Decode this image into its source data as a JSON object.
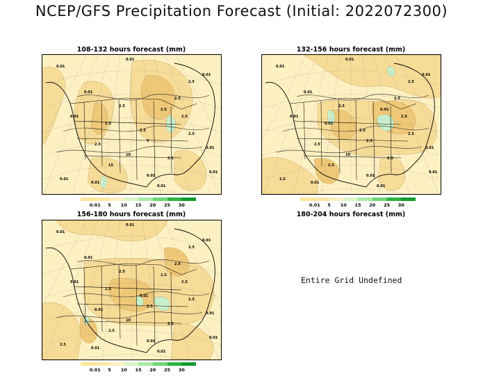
{
  "title": "NCEP/GFS Precipitation Forecast (Initial: 2022072300)",
  "panels": [
    {
      "title": "108-132 hours forecast (mm)",
      "labels": [
        "0.01",
        "0.01",
        "0.01",
        "0.01",
        "2.5",
        "2.5",
        "2.5",
        "2.5",
        "2.5",
        "2.5",
        "5",
        "10",
        "15",
        "2.5",
        "2.5",
        "0.01",
        "0.01",
        "0.01",
        "0.01",
        "2.5",
        "2.5",
        "0.01",
        "0.01",
        "0.01"
      ]
    },
    {
      "title": "132-156 hours forecast (mm)",
      "labels": [
        "0.01",
        "0.01",
        "0.01",
        "0.01",
        "2.5",
        "2.5",
        "0.01",
        "0.01",
        "2.5",
        "2.5",
        "2.5",
        "10",
        "2.5",
        "2.5",
        "2.5",
        "2.5",
        "0.01",
        "0.01",
        "0.01",
        "2.5",
        "2.5",
        "0.01",
        "0.01",
        "0.01"
      ]
    },
    {
      "title": "156-180 hours forecast (mm)",
      "labels": [
        "0.01",
        "0.01",
        "0.01",
        "0.01",
        "2.5",
        "2.5",
        "2.5",
        "2.5",
        "0.01",
        "0.01",
        "2.5",
        "10",
        "2.5",
        "2.5",
        "2.5",
        "2.5",
        "0.01",
        "0.01",
        "0.01",
        "2.5",
        "2.5",
        "0.01",
        "0.01",
        "0.01"
      ]
    },
    {
      "title": "180-204 hours forecast (mm)",
      "message": "Entire Grid Undefined"
    }
  ],
  "legend": {
    "labels": [
      "0.01",
      "5",
      "10",
      "15",
      "20",
      "25",
      "30"
    ],
    "colors": [
      "#f9e89a",
      "#fbe8a6",
      "#fdf0c2",
      "#d8f5c8",
      "#a8eaa2",
      "#6fd373",
      "#2eb241",
      "#129a2e"
    ]
  },
  "colors": {
    "light": "#fdf0c2",
    "mid": "#f7dc97",
    "dark": "#efc877",
    "green": "#c8f0cc",
    "grid": "#999999"
  }
}
